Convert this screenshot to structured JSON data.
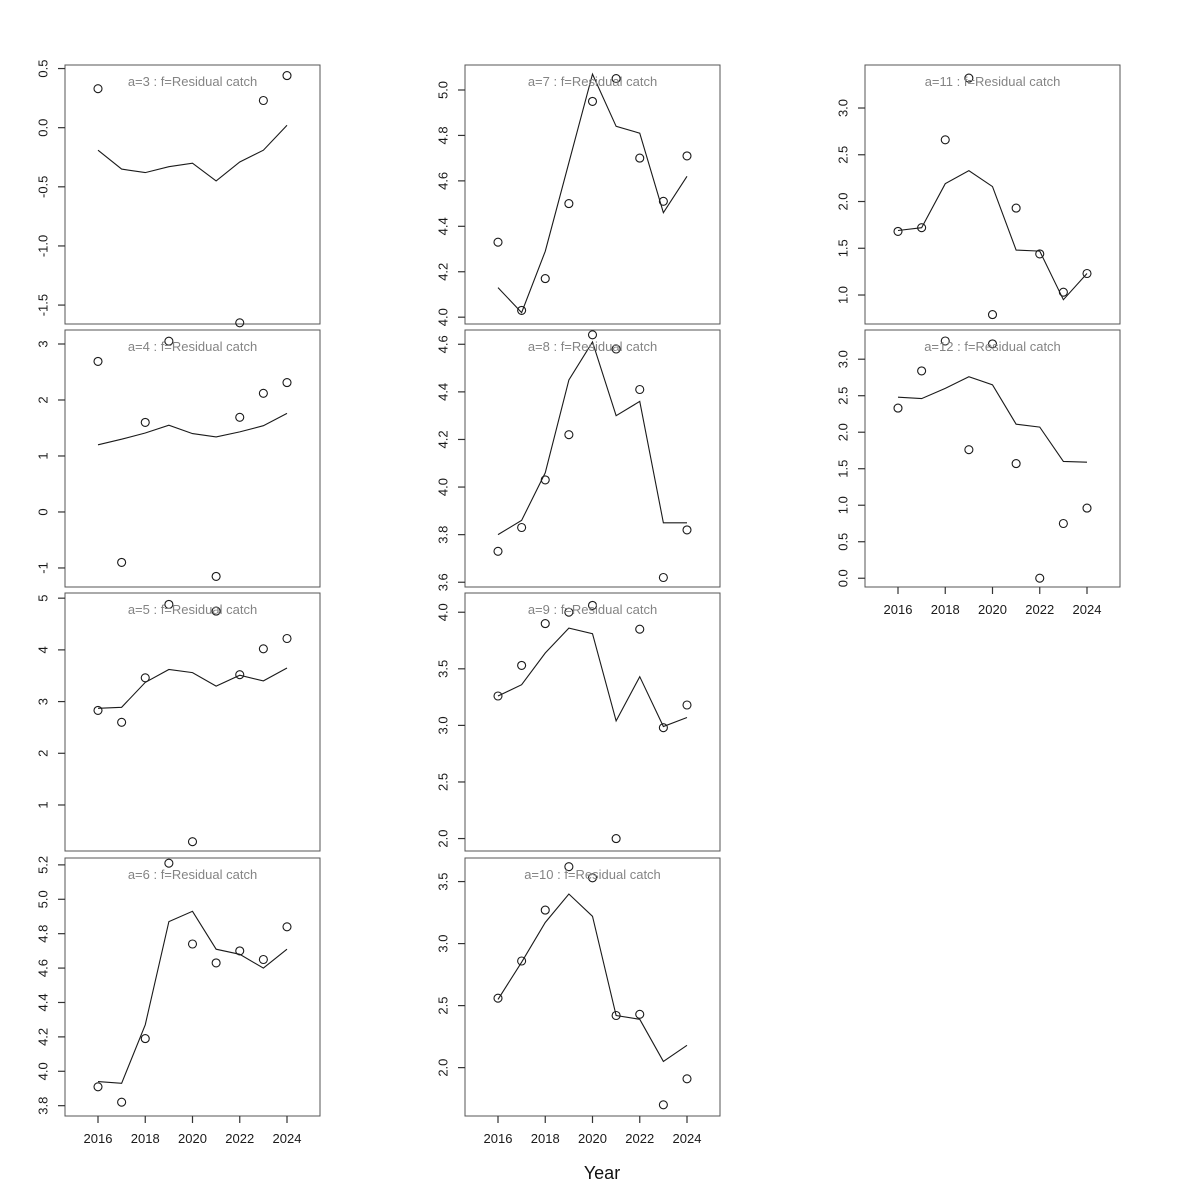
{
  "chart_data": {
    "type": "line",
    "figure_kind": "lattice of residual-catch fit panels (observed points + fitted line)",
    "x": [
      2016,
      2017,
      2018,
      2019,
      2020,
      2021,
      2022,
      2023,
      2024
    ],
    "xlabel": "Year",
    "x_tick_labels": [
      "2016",
      "2018",
      "2020",
      "2022",
      "2024"
    ],
    "x_tick_years": [
      2016,
      2018,
      2020,
      2022,
      2024
    ],
    "legend": "none",
    "style": {
      "observed": "open-circle-points",
      "fitted": "solid-line",
      "grid": "off"
    },
    "colors": {
      "background": "#ffffff",
      "line": "#1a1a1a",
      "point_stroke": "#1a1a1a",
      "box": "#555555",
      "tick": "#333333",
      "tick_label": "#1a1a1a",
      "title": "#848484",
      "xlabel": "#111111"
    },
    "panels": [
      {
        "a": 3,
        "title": "a=3  :  f=Residual catch",
        "col": 0,
        "row": 0,
        "x_axis_labeled": false,
        "ytick_labels": [
          "0.5",
          "0.0",
          "-0.5",
          "-1.0",
          "-1.5"
        ],
        "yticks": [
          0.5,
          0.0,
          -0.5,
          -1.0,
          -1.5
        ],
        "ylim": [
          -1.66,
          0.53
        ],
        "observed": [
          0.33,
          null,
          null,
          null,
          null,
          null,
          -1.65,
          0.23,
          0.44
        ],
        "fitted": [
          -0.19,
          -0.35,
          -0.38,
          -0.33,
          -0.3,
          -0.45,
          -0.29,
          -0.19,
          0.02
        ]
      },
      {
        "a": 4,
        "title": "a=4  :  f=Residual catch",
        "col": 0,
        "row": 1,
        "x_axis_labeled": false,
        "ytick_labels": [
          "3",
          "2",
          "1",
          "0",
          "-1"
        ],
        "yticks": [
          3,
          2,
          1,
          0,
          -1
        ],
        "ylim": [
          -1.34,
          3.25
        ],
        "observed": [
          2.69,
          -0.9,
          1.6,
          3.05,
          null,
          -1.15,
          1.69,
          2.12,
          2.31
        ],
        "fitted": [
          1.2,
          1.3,
          1.41,
          1.55,
          1.4,
          1.34,
          1.43,
          1.54,
          1.76
        ]
      },
      {
        "a": 5,
        "title": "a=5  :  f=Residual catch",
        "col": 0,
        "row": 2,
        "x_axis_labeled": false,
        "ytick_labels": [
          "5",
          "4",
          "3",
          "2",
          "1"
        ],
        "yticks": [
          5,
          4,
          3,
          2,
          1
        ],
        "ylim": [
          0.11,
          5.1
        ],
        "observed": [
          2.83,
          2.6,
          3.46,
          4.88,
          0.29,
          4.75,
          3.52,
          4.02,
          4.22
        ],
        "fitted": [
          2.87,
          2.89,
          3.37,
          3.62,
          3.56,
          3.3,
          3.51,
          3.4,
          3.65
        ]
      },
      {
        "a": 6,
        "title": "a=6  :  f=Residual catch",
        "col": 0,
        "row": 3,
        "x_axis_labeled": true,
        "ytick_labels": [
          "3.8",
          "4.0",
          "4.2",
          "4.4",
          "4.6",
          "4.8",
          "5.0",
          "5.2"
        ],
        "yticks": [
          3.8,
          4.0,
          4.2,
          4.4,
          4.6,
          4.8,
          5.0,
          5.2
        ],
        "ylim": [
          3.74,
          5.24
        ],
        "observed": [
          3.91,
          3.82,
          4.19,
          5.21,
          4.74,
          4.63,
          4.7,
          4.65,
          4.84
        ],
        "fitted": [
          3.94,
          3.93,
          4.27,
          4.87,
          4.93,
          4.71,
          4.68,
          4.6,
          4.71
        ]
      },
      {
        "a": 7,
        "title": "a=7  :  f=Residual catch",
        "col": 1,
        "row": 0,
        "x_axis_labeled": false,
        "ytick_labels": [
          "4.0",
          "4.2",
          "4.4",
          "4.6",
          "4.8",
          "5.0"
        ],
        "yticks": [
          4.0,
          4.2,
          4.4,
          4.6,
          4.8,
          5.0
        ],
        "ylim": [
          3.97,
          5.11
        ],
        "observed": [
          4.33,
          4.03,
          4.17,
          4.5,
          4.95,
          5.05,
          4.7,
          4.51,
          4.71
        ],
        "fitted": [
          4.13,
          4.02,
          4.29,
          4.68,
          5.07,
          4.84,
          4.81,
          4.46,
          4.62
        ]
      },
      {
        "a": 8,
        "title": "a=8  :  f=Residual catch",
        "col": 1,
        "row": 1,
        "x_axis_labeled": false,
        "ytick_labels": [
          "3.6",
          "3.8",
          "4.0",
          "4.2",
          "4.4",
          "4.6"
        ],
        "yticks": [
          3.6,
          3.8,
          4.0,
          4.2,
          4.4,
          4.6
        ],
        "ylim": [
          3.58,
          4.66
        ],
        "observed": [
          3.73,
          3.83,
          4.03,
          4.22,
          4.64,
          4.58,
          4.41,
          3.62,
          3.82
        ],
        "fitted": [
          3.8,
          3.86,
          4.06,
          4.45,
          4.61,
          4.3,
          4.36,
          3.85,
          3.85
        ]
      },
      {
        "a": 9,
        "title": "a=9  :  f=Residual catch",
        "col": 1,
        "row": 2,
        "x_axis_labeled": false,
        "ytick_labels": [
          "2.0",
          "2.5",
          "3.0",
          "3.5",
          "4.0"
        ],
        "yticks": [
          2.0,
          2.5,
          3.0,
          3.5,
          4.0
        ],
        "ylim": [
          1.89,
          4.17
        ],
        "observed": [
          3.26,
          3.53,
          3.9,
          4.0,
          4.06,
          2.0,
          3.85,
          2.98,
          3.18
        ],
        "fitted": [
          3.26,
          3.36,
          3.64,
          3.86,
          3.81,
          3.04,
          3.43,
          2.99,
          3.07
        ]
      },
      {
        "a": 10,
        "title": "a=10  :  f=Residual catch",
        "col": 1,
        "row": 3,
        "x_axis_labeled": true,
        "ytick_labels": [
          "2.0",
          "2.5",
          "3.0",
          "3.5"
        ],
        "yticks": [
          2.0,
          2.5,
          3.0,
          3.5
        ],
        "ylim": [
          1.61,
          3.69
        ],
        "observed": [
          2.56,
          2.86,
          3.27,
          3.62,
          3.53,
          2.42,
          2.43,
          1.7,
          1.91
        ],
        "fitted": [
          2.55,
          2.85,
          3.17,
          3.4,
          3.22,
          2.42,
          2.39,
          2.05,
          2.18
        ]
      },
      {
        "a": 11,
        "title": "a=11  :  f=Residual catch",
        "col": 2,
        "row": 0,
        "x_axis_labeled": false,
        "ytick_labels": [
          "1.0",
          "1.5",
          "2.0",
          "2.5",
          "3.0"
        ],
        "yticks": [
          1.0,
          1.5,
          2.0,
          2.5,
          3.0
        ],
        "ylim": [
          0.69,
          3.46
        ],
        "observed": [
          1.68,
          1.72,
          2.66,
          3.32,
          0.79,
          1.93,
          1.44,
          1.03,
          1.23
        ],
        "fitted": [
          1.69,
          1.72,
          2.19,
          2.33,
          2.16,
          1.48,
          1.47,
          0.95,
          1.23
        ]
      },
      {
        "a": 12,
        "title": "a=12  :  f=Residual catch",
        "col": 2,
        "row": 1,
        "x_axis_labeled": true,
        "ytick_labels": [
          "0.0",
          "0.5",
          "1.0",
          "1.5",
          "2.0",
          "2.5",
          "3.0"
        ],
        "yticks": [
          0.0,
          0.5,
          1.0,
          1.5,
          2.0,
          2.5,
          3.0
        ],
        "ylim": [
          -0.12,
          3.4
        ],
        "observed": [
          2.33,
          2.84,
          3.25,
          1.76,
          3.21,
          1.57,
          0.0,
          0.75,
          0.96
        ],
        "fitted": [
          2.48,
          2.46,
          2.6,
          2.76,
          2.65,
          2.11,
          2.07,
          1.6,
          1.59
        ]
      }
    ]
  }
}
